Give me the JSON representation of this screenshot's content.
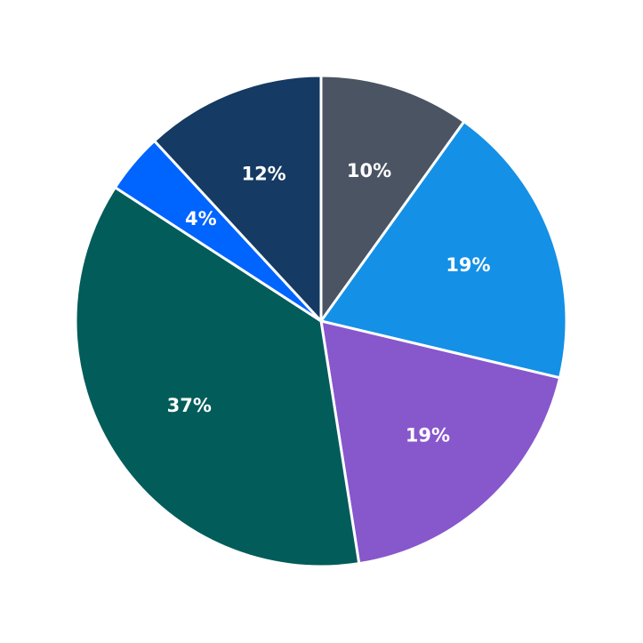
{
  "chart_data": {
    "type": "pie",
    "values": [
      10,
      19,
      19,
      37,
      4,
      12
    ],
    "value_labels": [
      "10%",
      "19%",
      "19%",
      "37%",
      "4%",
      "12%"
    ],
    "colors": [
      "#4a5462",
      "#1490e6",
      "#8757cc",
      "#025c5a",
      "#0064ff",
      "#153a63"
    ]
  }
}
